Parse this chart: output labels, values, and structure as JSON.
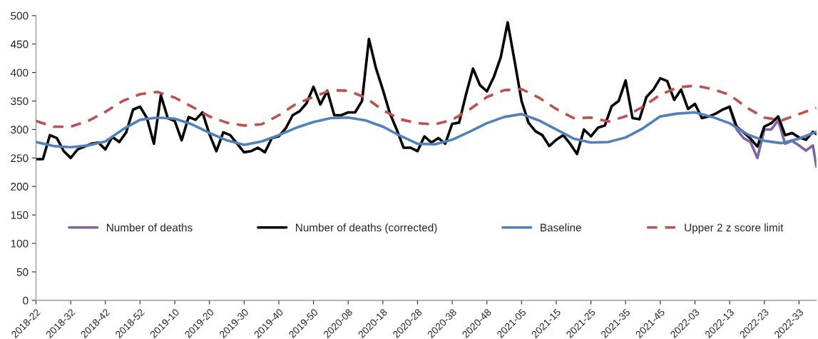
{
  "chart_data": {
    "type": "line",
    "legend": "bottom",
    "grid": false,
    "xlim": [
      "2018-05-28",
      "2022-09-19"
    ],
    "ylim": [
      0,
      500
    ],
    "yticks": [
      0,
      50,
      100,
      150,
      200,
      250,
      300,
      350,
      400,
      450,
      500
    ],
    "xticks": [
      {
        "value": "2018-05-28",
        "label": "2018-22"
      },
      {
        "value": "2018-08-06",
        "label": "2018-32"
      },
      {
        "value": "2018-10-15",
        "label": "2018-42"
      },
      {
        "value": "2018-12-24",
        "label": "2018-52"
      },
      {
        "value": "2019-03-04",
        "label": "2019-10"
      },
      {
        "value": "2019-05-13",
        "label": "2019-20"
      },
      {
        "value": "2019-07-22",
        "label": "2019-30"
      },
      {
        "value": "2019-09-30",
        "label": "2019-40"
      },
      {
        "value": "2019-12-09",
        "label": "2019-50"
      },
      {
        "value": "2020-02-17",
        "label": "2020-08"
      },
      {
        "value": "2020-04-27",
        "label": "2020-18"
      },
      {
        "value": "2020-07-06",
        "label": "2020-28"
      },
      {
        "value": "2020-09-14",
        "label": "2020-38"
      },
      {
        "value": "2020-11-23",
        "label": "2020-48"
      },
      {
        "value": "2021-02-01",
        "label": "2021-05"
      },
      {
        "value": "2021-04-12",
        "label": "2021-15"
      },
      {
        "value": "2021-06-21",
        "label": "2021-25"
      },
      {
        "value": "2021-08-30",
        "label": "2021-35"
      },
      {
        "value": "2021-11-08",
        "label": "2021-45"
      },
      {
        "value": "2022-01-17",
        "label": "2022-03"
      },
      {
        "value": "2022-03-28",
        "label": "2022-13"
      },
      {
        "value": "2022-06-06",
        "label": "2022-23"
      },
      {
        "value": "2022-08-15",
        "label": "2022-33"
      }
    ],
    "series": [
      {
        "name": "Number of deaths",
        "color": "#8064a2",
        "line_style": "solid",
        "x": [
          "2022-03-28",
          "2022-04-11",
          "2022-04-25",
          "2022-05-09",
          "2022-05-23",
          "2022-06-06",
          "2022-06-20",
          "2022-07-04",
          "2022-07-18",
          "2022-08-01",
          "2022-08-15",
          "2022-08-29",
          "2022-09-12",
          "2022-09-19"
        ],
        "values": [
          338,
          300,
          285,
          278,
          250,
          300,
          300,
          316,
          275,
          280,
          272,
          263,
          272,
          235
        ]
      },
      {
        "name": "Number of deaths (corrected)",
        "color": "#000000",
        "line_style": "solid",
        "x": [
          "2018-05-28",
          "2018-06-11",
          "2018-06-25",
          "2018-07-09",
          "2018-07-23",
          "2018-08-06",
          "2018-08-20",
          "2018-09-03",
          "2018-09-17",
          "2018-10-01",
          "2018-10-15",
          "2018-10-29",
          "2018-11-12",
          "2018-11-26",
          "2018-12-10",
          "2018-12-24",
          "2019-01-07",
          "2019-01-21",
          "2019-02-04",
          "2019-02-18",
          "2019-03-04",
          "2019-03-18",
          "2019-04-01",
          "2019-04-15",
          "2019-04-29",
          "2019-05-13",
          "2019-05-27",
          "2019-06-10",
          "2019-06-24",
          "2019-07-08",
          "2019-07-22",
          "2019-08-05",
          "2019-08-19",
          "2019-09-02",
          "2019-09-16",
          "2019-09-30",
          "2019-10-14",
          "2019-10-28",
          "2019-11-11",
          "2019-11-25",
          "2019-12-09",
          "2019-12-23",
          "2020-01-06",
          "2020-01-20",
          "2020-02-03",
          "2020-02-17",
          "2020-03-02",
          "2020-03-16",
          "2020-03-30",
          "2020-04-13",
          "2020-04-27",
          "2020-05-11",
          "2020-05-25",
          "2020-06-08",
          "2020-06-22",
          "2020-07-06",
          "2020-07-20",
          "2020-08-03",
          "2020-08-17",
          "2020-08-31",
          "2020-09-14",
          "2020-09-28",
          "2020-10-12",
          "2020-10-26",
          "2020-11-09",
          "2020-11-23",
          "2020-12-07",
          "2020-12-21",
          "2021-01-04",
          "2021-01-18",
          "2021-02-01",
          "2021-02-15",
          "2021-03-01",
          "2021-03-15",
          "2021-03-29",
          "2021-04-12",
          "2021-04-26",
          "2021-05-10",
          "2021-05-24",
          "2021-06-07",
          "2021-06-21",
          "2021-07-05",
          "2021-07-19",
          "2021-08-02",
          "2021-08-16",
          "2021-08-30",
          "2021-09-13",
          "2021-09-27",
          "2021-10-11",
          "2021-10-25",
          "2021-11-08",
          "2021-11-22",
          "2021-12-06",
          "2021-12-20",
          "2022-01-03",
          "2022-01-17",
          "2022-01-31",
          "2022-02-14",
          "2022-02-28",
          "2022-03-14",
          "2022-03-28",
          "2022-04-11",
          "2022-04-25",
          "2022-05-09",
          "2022-05-23",
          "2022-06-06",
          "2022-06-20",
          "2022-07-04",
          "2022-07-18",
          "2022-08-01",
          "2022-08-15",
          "2022-08-29",
          "2022-09-12",
          "2022-09-19"
        ],
        "values": [
          248,
          248,
          290,
          285,
          262,
          250,
          265,
          270,
          275,
          277,
          265,
          287,
          278,
          295,
          335,
          340,
          320,
          275,
          360,
          320,
          315,
          281,
          322,
          317,
          330,
          292,
          262,
          295,
          290,
          275,
          260,
          262,
          268,
          260,
          285,
          288,
          302,
          325,
          332,
          346,
          375,
          344,
          368,
          325,
          325,
          330,
          330,
          350,
          459,
          408,
          370,
          329,
          300,
          268,
          268,
          262,
          288,
          277,
          285,
          275,
          310,
          312,
          362,
          407,
          378,
          367,
          392,
          427,
          488,
          420,
          350,
          312,
          297,
          290,
          271,
          282,
          290,
          275,
          257,
          300,
          288,
          303,
          307,
          341,
          350,
          386,
          320,
          318,
          357,
          370,
          390,
          385,
          352,
          370,
          336,
          345,
          320,
          323,
          328,
          335,
          340,
          305,
          295,
          284,
          270,
          305,
          311,
          323,
          290,
          294,
          286,
          282,
          296,
          292
        ]
      },
      {
        "name": "Baseline",
        "color": "#4f81bd",
        "line_style": "solid",
        "x": [
          "2018-05-28",
          "2018-07-02",
          "2018-08-06",
          "2018-09-10",
          "2018-10-15",
          "2018-11-19",
          "2018-12-24",
          "2019-01-28",
          "2019-03-04",
          "2019-04-08",
          "2019-05-13",
          "2019-06-17",
          "2019-07-22",
          "2019-08-26",
          "2019-09-30",
          "2019-11-04",
          "2019-12-09",
          "2020-01-13",
          "2020-02-17",
          "2020-03-23",
          "2020-04-27",
          "2020-06-01",
          "2020-07-06",
          "2020-08-10",
          "2020-09-14",
          "2020-10-19",
          "2020-11-23",
          "2020-12-28",
          "2021-02-01",
          "2021-03-08",
          "2021-04-12",
          "2021-05-17",
          "2021-06-21",
          "2021-07-26",
          "2021-08-30",
          "2021-10-04",
          "2021-11-08",
          "2021-12-13",
          "2022-01-17",
          "2022-02-21",
          "2022-03-28",
          "2022-05-02",
          "2022-06-06",
          "2022-07-11",
          "2022-08-15",
          "2022-09-19"
        ],
        "values": [
          278,
          271,
          269,
          272,
          279,
          300,
          317,
          321,
          319,
          309,
          294,
          281,
          273,
          279,
          290,
          303,
          313,
          320,
          321,
          316,
          305,
          289,
          275,
          274,
          282,
          296,
          311,
          322,
          327,
          316,
          300,
          284,
          277,
          278,
          286,
          302,
          323,
          328,
          330,
          322,
          311,
          292,
          280,
          276,
          284,
          296
        ]
      },
      {
        "name": "Upper 2 z score limit",
        "color": "#c0504d",
        "line_style": "dashed",
        "x": [
          "2018-05-28",
          "2018-07-02",
          "2018-08-06",
          "2018-09-10",
          "2018-10-15",
          "2018-11-19",
          "2018-12-24",
          "2019-01-28",
          "2019-03-04",
          "2019-04-08",
          "2019-05-13",
          "2019-06-17",
          "2019-07-22",
          "2019-08-26",
          "2019-09-30",
          "2019-11-04",
          "2019-12-09",
          "2020-01-13",
          "2020-02-17",
          "2020-03-23",
          "2020-04-27",
          "2020-06-01",
          "2020-07-06",
          "2020-08-10",
          "2020-09-14",
          "2020-10-19",
          "2020-11-23",
          "2020-12-28",
          "2021-02-01",
          "2021-03-08",
          "2021-04-12",
          "2021-05-17",
          "2021-06-21",
          "2021-07-26",
          "2021-08-30",
          "2021-10-04",
          "2021-11-08",
          "2021-12-13",
          "2022-01-17",
          "2022-02-21",
          "2022-03-28",
          "2022-05-02",
          "2022-06-06",
          "2022-07-11",
          "2022-08-15",
          "2022-09-19"
        ],
        "values": [
          315,
          305,
          305,
          315,
          331,
          350,
          362,
          366,
          356,
          340,
          323,
          312,
          307,
          309,
          325,
          345,
          357,
          369,
          368,
          356,
          334,
          318,
          311,
          309,
          317,
          335,
          357,
          369,
          371,
          356,
          336,
          320,
          321,
          314,
          323,
          340,
          361,
          374,
          377,
          371,
          361,
          338,
          321,
          316,
          327,
          338
        ]
      }
    ]
  }
}
